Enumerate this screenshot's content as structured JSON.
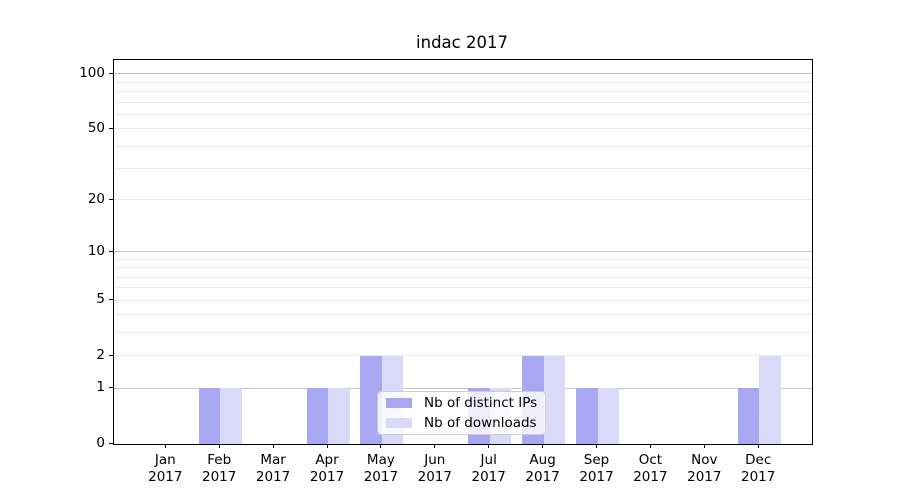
{
  "chart_data": {
    "type": "bar",
    "title": "indac 2017",
    "categories": [
      "Jan",
      "Feb",
      "Mar",
      "Apr",
      "May",
      "Jun",
      "Jul",
      "Aug",
      "Sep",
      "Oct",
      "Nov",
      "Dec"
    ],
    "category_year": "2017",
    "series": [
      {
        "name": "Nb of distinct IPs",
        "color": "#a8a8f2",
        "values": [
          0,
          1,
          0,
          1,
          2,
          0,
          1,
          2,
          1,
          0,
          0,
          1
        ]
      },
      {
        "name": "Nb of downloads",
        "color": "#dadaf8",
        "values": [
          0,
          1,
          0,
          1,
          2,
          0,
          1,
          2,
          1,
          0,
          0,
          2
        ]
      }
    ],
    "yscale": "log1p",
    "ylim": [
      0,
      116
    ],
    "yticks": [
      0,
      1,
      2,
      5,
      10,
      20,
      50,
      100
    ],
    "major_grid": [
      1,
      10,
      100
    ],
    "minor_grid": [
      2,
      3,
      4,
      5,
      6,
      7,
      8,
      9,
      20,
      30,
      40,
      50,
      60,
      70,
      80,
      90
    ],
    "grid_on": true,
    "legend": {
      "position": "lower center",
      "entries": [
        "Nb of distinct IPs",
        "Nb of downloads"
      ]
    },
    "colors": {
      "axis": "#000000",
      "major_grid": "#c3c3c3",
      "minor_grid": "#e9e9e9",
      "background": "#ffffff"
    }
  }
}
